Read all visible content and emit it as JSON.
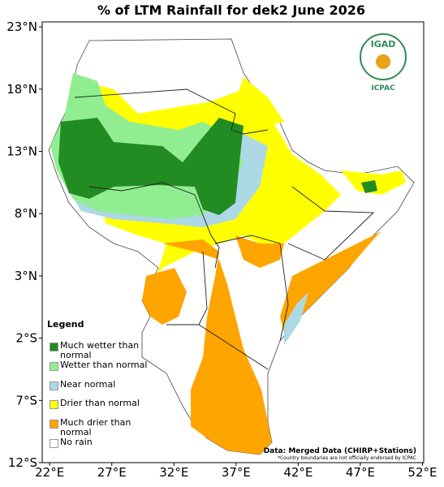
{
  "map": {
    "title": "% of LTM Rainfall for dek2 June 2026",
    "xlim": [
      21.4,
      52.1
    ],
    "ylim": [
      -12,
      23.4
    ],
    "xticks": [
      {
        "value": 22,
        "label": "22°E"
      },
      {
        "value": 27,
        "label": "27°E"
      },
      {
        "value": 32,
        "label": "32°E"
      },
      {
        "value": 37,
        "label": "37°E"
      },
      {
        "value": 42,
        "label": "42°E"
      },
      {
        "value": 47,
        "label": "47°E"
      },
      {
        "value": 52,
        "label": "52°E"
      }
    ],
    "yticks": [
      {
        "value": -12,
        "label": "12°S"
      },
      {
        "value": -7,
        "label": "7°S"
      },
      {
        "value": -2,
        "label": "2°S"
      },
      {
        "value": 3,
        "label": "3°N"
      },
      {
        "value": 8,
        "label": "8°N"
      },
      {
        "value": 13,
        "label": "13°N"
      },
      {
        "value": 18,
        "label": "18°N"
      },
      {
        "value": 23,
        "label": "23°N"
      }
    ],
    "legend": {
      "title": "Legend",
      "items": [
        {
          "label": "Much wetter than normal",
          "color": "#228b22"
        },
        {
          "label": "Wetter than normal",
          "color": "#90ee90"
        },
        {
          "label": "Near normal",
          "color": "#add8e6"
        },
        {
          "label": "Drier than normal",
          "color": "#ffff00"
        },
        {
          "label": "Much drier than normal",
          "color": "#ffa500"
        },
        {
          "label": "No rain",
          "color": "#ffffff"
        }
      ]
    },
    "logo": {
      "name": "IGAD",
      "org": "ICPAC"
    },
    "source": "Data: Merged Data (CHIRP+Stations)",
    "note": "*Country boundaries are not officially endorsed by ICPAC"
  }
}
